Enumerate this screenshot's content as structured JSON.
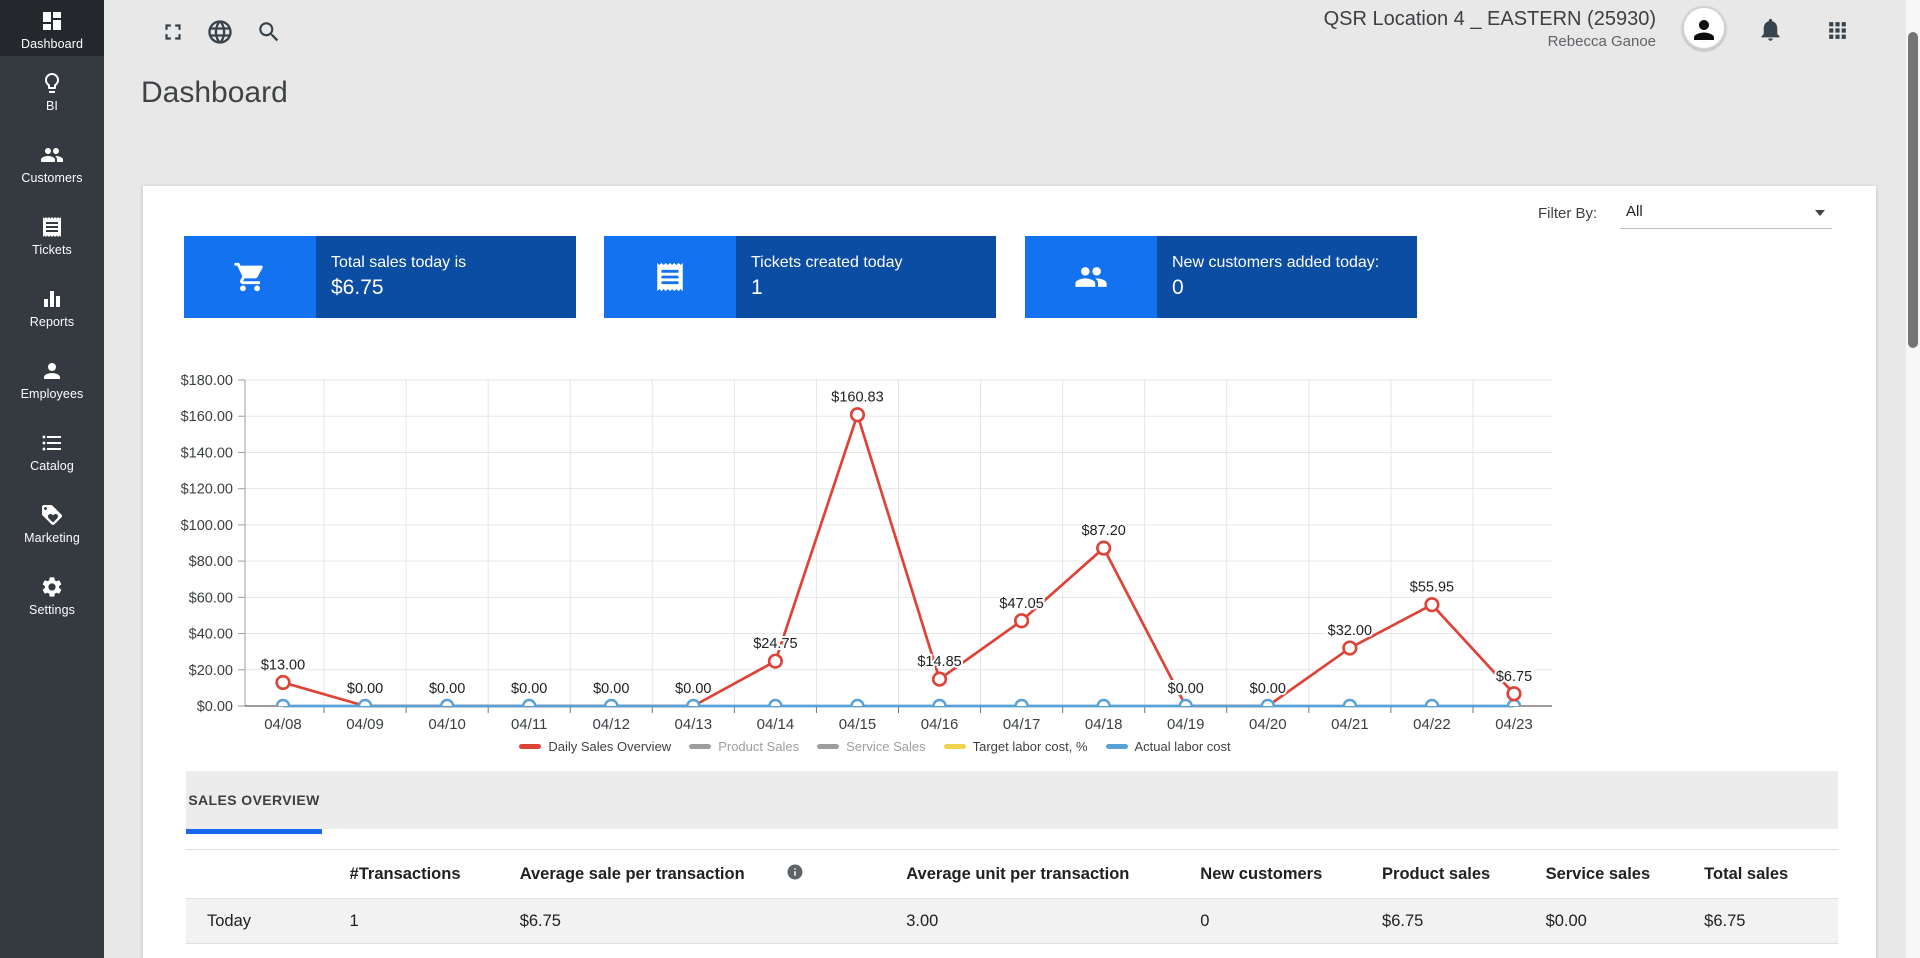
{
  "topbar": {
    "location_title": "QSR Location 4 _ EASTERN (25930)",
    "user_name": "Rebecca Ganoe"
  },
  "sidebar": {
    "items": [
      {
        "label": "Dashboard",
        "icon": "dashboard-icon",
        "active": true
      },
      {
        "label": "BI",
        "icon": "lightbulb-icon",
        "active": false
      },
      {
        "label": "Customers",
        "icon": "people-icon",
        "active": false
      },
      {
        "label": "Tickets",
        "icon": "receipt-icon",
        "active": false
      },
      {
        "label": "Reports",
        "icon": "bar-chart-icon",
        "active": false
      },
      {
        "label": "Employees",
        "icon": "person-icon",
        "active": false
      },
      {
        "label": "Catalog",
        "icon": "list-icon",
        "active": false
      },
      {
        "label": "Marketing",
        "icon": "tag-heart-icon",
        "active": false
      },
      {
        "label": "Settings",
        "icon": "gear-icon",
        "active": false
      }
    ]
  },
  "page": {
    "title": "Dashboard"
  },
  "filter": {
    "label": "Filter By:",
    "value": "All"
  },
  "stat_cards": [
    {
      "icon": "cart-icon",
      "title": "Total sales today is",
      "value": "$6.75"
    },
    {
      "icon": "receipt-icon",
      "title": "Tickets created today",
      "value": "1"
    },
    {
      "icon": "people-icon",
      "title": "New customers added today:",
      "value": "0"
    }
  ],
  "chart_data": {
    "type": "line",
    "x_labels": [
      "04/08",
      "04/09",
      "04/10",
      "04/11",
      "04/12",
      "04/13",
      "04/14",
      "04/15",
      "04/16",
      "04/17",
      "04/18",
      "04/19",
      "04/20",
      "04/21",
      "04/22",
      "04/23"
    ],
    "ylim": [
      0,
      180
    ],
    "ytick_step": 20,
    "ytick_format": "dollar_2dp",
    "grid": true,
    "legend_position": "bottom",
    "series": [
      {
        "name": "Daily Sales Overview",
        "color": "#dd4337",
        "enabled": true,
        "marker": "circle",
        "values": [
          13.0,
          0,
          0,
          0,
          0,
          0,
          24.75,
          160.83,
          14.85,
          47.05,
          87.2,
          0,
          0,
          32.0,
          55.95,
          6.75
        ],
        "point_labels": [
          "$13.00",
          "$0.00",
          "$0.00",
          "$0.00",
          "$0.00",
          "$0.00",
          "$24.75",
          "$160.83",
          "$14.85",
          "$47.05",
          "$87.20",
          "$0.00",
          "$0.00",
          "$32.00",
          "$55.95",
          "$6.75"
        ]
      },
      {
        "name": "Product Sales",
        "color": "#9e9e9e",
        "enabled": false,
        "values": []
      },
      {
        "name": "Service Sales",
        "color": "#9e9e9e",
        "enabled": false,
        "values": []
      },
      {
        "name": "Target labor cost, %",
        "color": "#efd34e",
        "enabled": true,
        "values": []
      },
      {
        "name": "Actual labor cost",
        "color": "#58a1d7",
        "enabled": true,
        "marker": "bump",
        "values": [
          0,
          0,
          0,
          0,
          0,
          0,
          0,
          0,
          0,
          0,
          0,
          0,
          0,
          0,
          0,
          0
        ]
      }
    ]
  },
  "tabs": {
    "items": [
      {
        "label": "SALES OVERVIEW",
        "active": true
      }
    ]
  },
  "table": {
    "headers": [
      "",
      "#Transactions",
      "Average sale per transaction",
      "",
      "Average unit per transaction",
      "New customers",
      "Product sales",
      "Service sales",
      "Total sales"
    ],
    "rows": [
      {
        "cells": [
          "Today",
          "1",
          "$6.75",
          "",
          "3.00",
          "0",
          "$6.75",
          "$0.00",
          "$6.75"
        ]
      }
    ]
  },
  "colors": {
    "sidebar_bg": "#343a40",
    "sidebar_active_bg": "#24282d",
    "stat_icon_blue": "#1372f0",
    "stat_body_blue": "#0b4da2",
    "tab_accent_blue": "#1769ef",
    "chart_red": "#dd4337",
    "chart_blue": "#58a1d7",
    "chart_yellow": "#efd34e",
    "chart_gray": "#9e9e9e"
  }
}
